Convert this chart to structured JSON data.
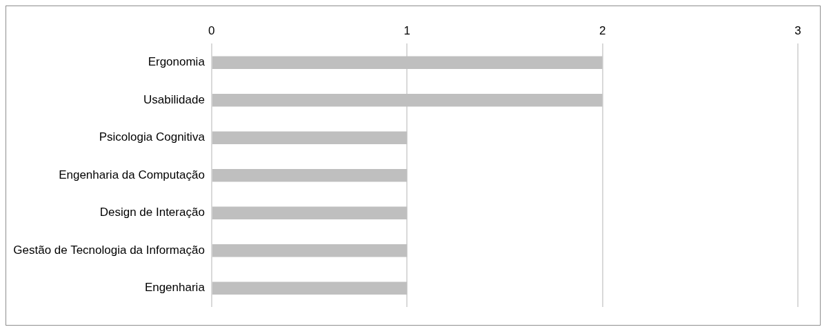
{
  "chart_data": {
    "type": "bar",
    "orientation": "horizontal",
    "categories": [
      "Ergonomia",
      "Usabilidade",
      "Psicologia Cognitiva",
      "Engenharia da Computação",
      "Design de Interação",
      "Gestão de Tecnologia da Informação",
      "Engenharia"
    ],
    "values": [
      2,
      2,
      1,
      1,
      1,
      1,
      1
    ],
    "color": "#bfbfbf",
    "xlim": [
      0,
      3
    ],
    "xticks": [
      0,
      1,
      2,
      3
    ],
    "grid": "x",
    "legend": false
  }
}
